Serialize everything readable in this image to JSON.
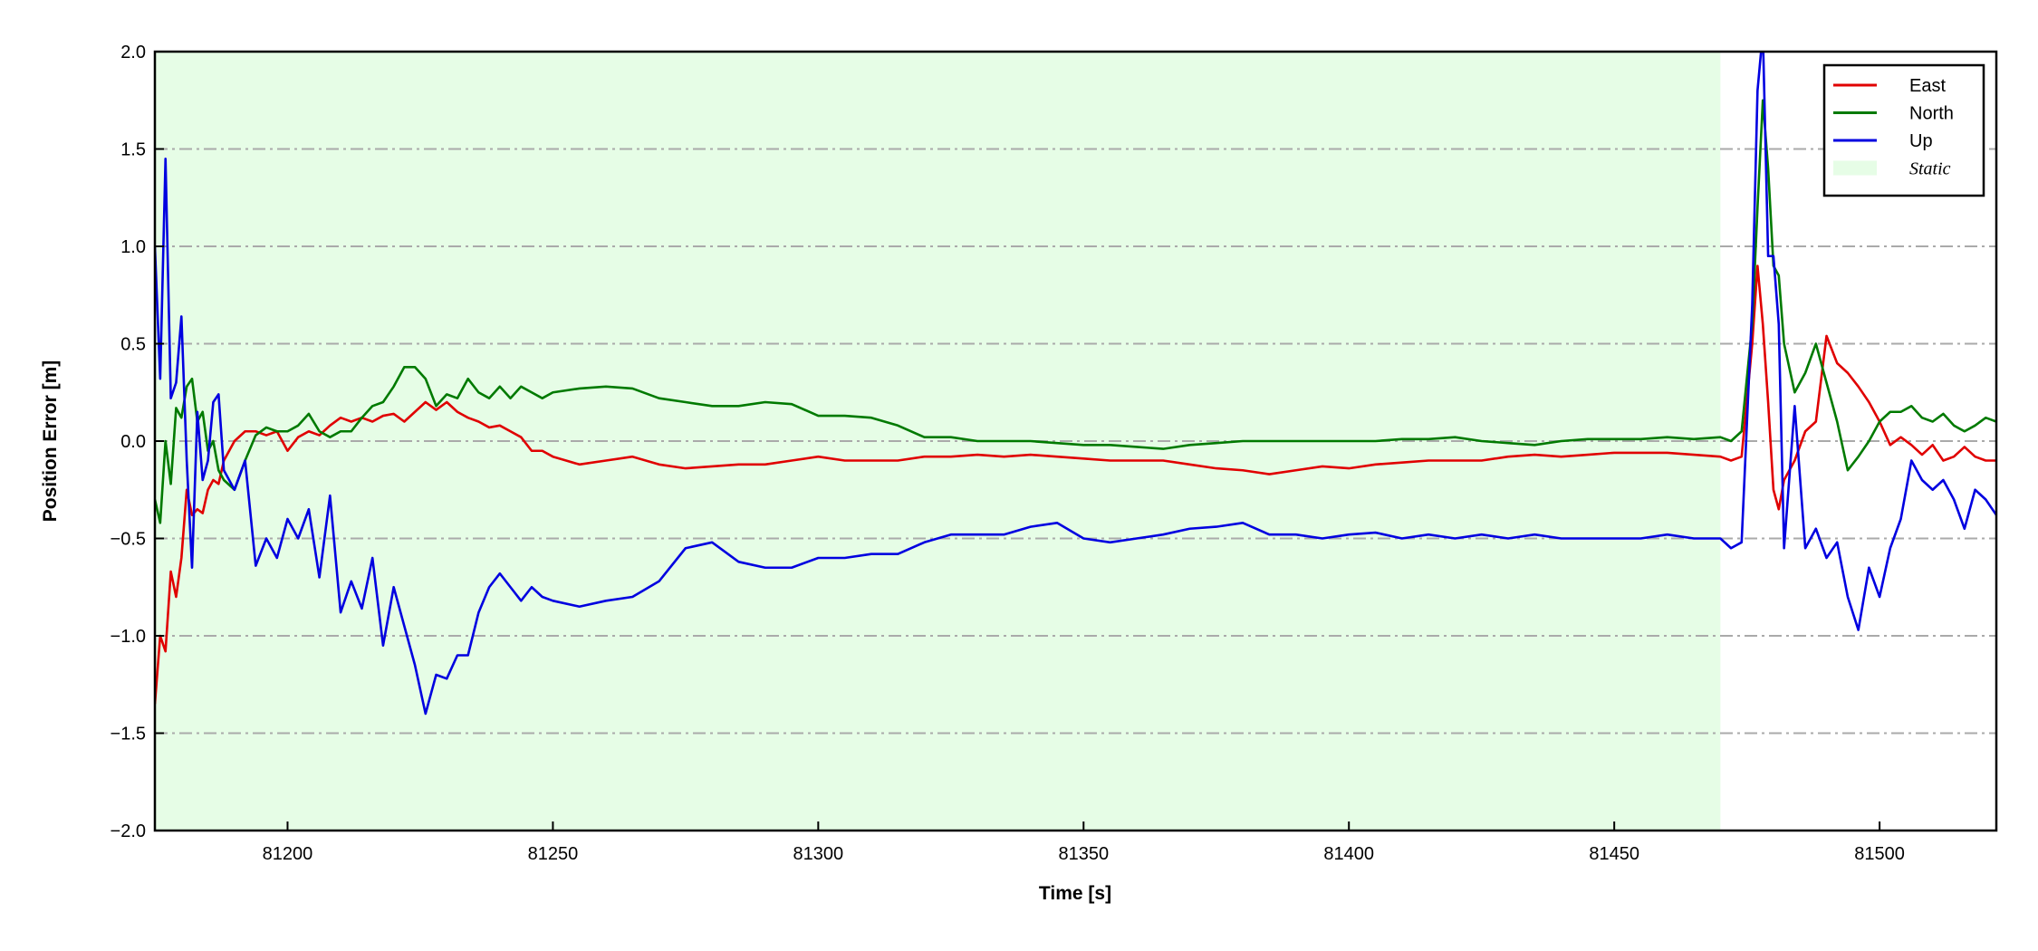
{
  "chart_data": {
    "type": "line",
    "x_label": "Time [s]",
    "y_label": "Position Error [m]",
    "xlim": [
      81175,
      81522
    ],
    "ylim": [
      -2.0,
      2.0
    ],
    "xticks": [
      81200,
      81250,
      81300,
      81350,
      81400,
      81450,
      81500
    ],
    "yticks": [
      {
        "value": -2.0,
        "label": "−2.0"
      },
      {
        "value": -1.5,
        "label": "−1.5"
      },
      {
        "value": -1.0,
        "label": "−1.0"
      },
      {
        "value": -0.5,
        "label": "−0.5"
      },
      {
        "value": 0.0,
        "label": "0.0"
      },
      {
        "value": 0.5,
        "label": "0.5"
      },
      {
        "value": 1.0,
        "label": "1.0"
      },
      {
        "value": 1.5,
        "label": "1.5"
      },
      {
        "value": 2.0,
        "label": "2.0"
      }
    ],
    "grid": true,
    "legend": "upper right",
    "spans": [
      {
        "name": "Static",
        "color": "#e6fde6",
        "x": [
          81175,
          81470
        ]
      }
    ],
    "x": [
      81175,
      81176,
      81177,
      81178,
      81179,
      81180,
      81181,
      81182,
      81183,
      81184,
      81185,
      81186,
      81187,
      81188,
      81190,
      81192,
      81194,
      81196,
      81198,
      81200,
      81202,
      81204,
      81206,
      81208,
      81210,
      81212,
      81214,
      81216,
      81218,
      81220,
      81222,
      81224,
      81226,
      81228,
      81230,
      81232,
      81234,
      81236,
      81238,
      81240,
      81242,
      81244,
      81246,
      81248,
      81250,
      81255,
      81260,
      81265,
      81270,
      81275,
      81280,
      81285,
      81290,
      81295,
      81300,
      81305,
      81310,
      81315,
      81320,
      81325,
      81330,
      81335,
      81340,
      81345,
      81350,
      81355,
      81360,
      81365,
      81370,
      81375,
      81380,
      81385,
      81390,
      81395,
      81400,
      81405,
      81410,
      81415,
      81420,
      81425,
      81430,
      81435,
      81440,
      81445,
      81450,
      81455,
      81460,
      81465,
      81470,
      81472,
      81474,
      81476,
      81477,
      81478,
      81479,
      81480,
      81481,
      81482,
      81484,
      81486,
      81488,
      81490,
      81492,
      81494,
      81496,
      81498,
      81500,
      81502,
      81504,
      81506,
      81508,
      81510,
      81512,
      81514,
      81516,
      81518,
      81520,
      81522
    ],
    "series": [
      {
        "name": "East",
        "color": "#e00000",
        "values": [
          -1.35,
          -1.0,
          -1.08,
          -0.67,
          -0.8,
          -0.6,
          -0.25,
          -0.38,
          -0.35,
          -0.37,
          -0.25,
          -0.2,
          -0.22,
          -0.1,
          0.0,
          0.05,
          0.05,
          0.03,
          0.05,
          -0.05,
          0.02,
          0.05,
          0.03,
          0.08,
          0.12,
          0.1,
          0.12,
          0.1,
          0.13,
          0.14,
          0.1,
          0.15,
          0.2,
          0.16,
          0.2,
          0.15,
          0.12,
          0.1,
          0.07,
          0.08,
          0.05,
          0.02,
          -0.05,
          -0.05,
          -0.08,
          -0.12,
          -0.1,
          -0.08,
          -0.12,
          -0.14,
          -0.13,
          -0.12,
          -0.12,
          -0.1,
          -0.08,
          -0.1,
          -0.1,
          -0.1,
          -0.08,
          -0.08,
          -0.07,
          -0.08,
          -0.07,
          -0.08,
          -0.09,
          -0.1,
          -0.1,
          -0.1,
          -0.12,
          -0.14,
          -0.15,
          -0.17,
          -0.15,
          -0.13,
          -0.14,
          -0.12,
          -0.11,
          -0.1,
          -0.1,
          -0.1,
          -0.08,
          -0.07,
          -0.08,
          -0.07,
          -0.06,
          -0.06,
          -0.06,
          -0.07,
          -0.08,
          -0.1,
          -0.08,
          0.5,
          0.9,
          0.6,
          0.2,
          -0.25,
          -0.35,
          -0.2,
          -0.1,
          0.05,
          0.1,
          0.54,
          0.4,
          0.35,
          0.28,
          0.2,
          0.1,
          -0.02,
          0.02,
          -0.02,
          -0.07,
          -0.02,
          -0.1,
          -0.08,
          -0.03,
          -0.08,
          -0.1,
          -0.1
        ]
      },
      {
        "name": "North",
        "color": "#007a00",
        "values": [
          -0.3,
          -0.42,
          0.0,
          -0.22,
          0.17,
          0.12,
          0.28,
          0.32,
          0.1,
          0.15,
          -0.05,
          0.0,
          -0.15,
          -0.2,
          -0.25,
          -0.1,
          0.03,
          0.07,
          0.05,
          0.05,
          0.08,
          0.14,
          0.05,
          0.02,
          0.05,
          0.05,
          0.12,
          0.18,
          0.2,
          0.28,
          0.38,
          0.38,
          0.32,
          0.18,
          0.24,
          0.22,
          0.32,
          0.25,
          0.22,
          0.28,
          0.22,
          0.28,
          0.25,
          0.22,
          0.25,
          0.27,
          0.28,
          0.27,
          0.22,
          0.2,
          0.18,
          0.18,
          0.2,
          0.19,
          0.13,
          0.13,
          0.12,
          0.08,
          0.02,
          0.02,
          0.0,
          0.0,
          0.0,
          -0.01,
          -0.02,
          -0.02,
          -0.03,
          -0.04,
          -0.02,
          -0.01,
          0.0,
          0.0,
          0.0,
          0.0,
          0.0,
          0.0,
          0.01,
          0.01,
          0.02,
          0.0,
          -0.01,
          -0.02,
          0.0,
          0.01,
          0.01,
          0.01,
          0.02,
          0.01,
          0.02,
          0.0,
          0.05,
          0.6,
          1.2,
          1.75,
          1.4,
          0.9,
          0.85,
          0.5,
          0.25,
          0.35,
          0.5,
          0.3,
          0.1,
          -0.15,
          -0.08,
          0.0,
          0.1,
          0.15,
          0.15,
          0.18,
          0.12,
          0.1,
          0.14,
          0.08,
          0.05,
          0.08,
          0.12,
          0.1
        ]
      },
      {
        "name": "Up",
        "color": "#0000e0",
        "values": [
          1.0,
          0.32,
          1.45,
          0.22,
          0.3,
          0.64,
          -0.1,
          -0.65,
          0.15,
          -0.2,
          -0.1,
          0.2,
          0.24,
          -0.15,
          -0.25,
          -0.1,
          -0.64,
          -0.5,
          -0.6,
          -0.4,
          -0.5,
          -0.35,
          -0.7,
          -0.28,
          -0.88,
          -0.72,
          -0.86,
          -0.6,
          -1.05,
          -0.75,
          -0.95,
          -1.15,
          -1.4,
          -1.2,
          -1.22,
          -1.1,
          -1.1,
          -0.88,
          -0.75,
          -0.68,
          -0.75,
          -0.82,
          -0.75,
          -0.8,
          -0.82,
          -0.85,
          -0.82,
          -0.8,
          -0.72,
          -0.55,
          -0.52,
          -0.62,
          -0.65,
          -0.65,
          -0.6,
          -0.6,
          -0.58,
          -0.58,
          -0.52,
          -0.48,
          -0.48,
          -0.48,
          -0.44,
          -0.42,
          -0.5,
          -0.52,
          -0.5,
          -0.48,
          -0.45,
          -0.44,
          -0.42,
          -0.48,
          -0.48,
          -0.5,
          -0.48,
          -0.47,
          -0.5,
          -0.48,
          -0.5,
          -0.48,
          -0.5,
          -0.48,
          -0.5,
          -0.5,
          -0.5,
          -0.5,
          -0.48,
          -0.5,
          -0.5,
          -0.55,
          -0.52,
          0.7,
          1.8,
          2.1,
          0.95,
          0.95,
          0.6,
          -0.55,
          0.18,
          -0.55,
          -0.45,
          -0.6,
          -0.52,
          -0.8,
          -0.97,
          -0.65,
          -0.8,
          -0.55,
          -0.4,
          -0.1,
          -0.2,
          -0.25,
          -0.2,
          -0.3,
          -0.45,
          -0.25,
          -0.3,
          -0.38
        ]
      }
    ]
  }
}
